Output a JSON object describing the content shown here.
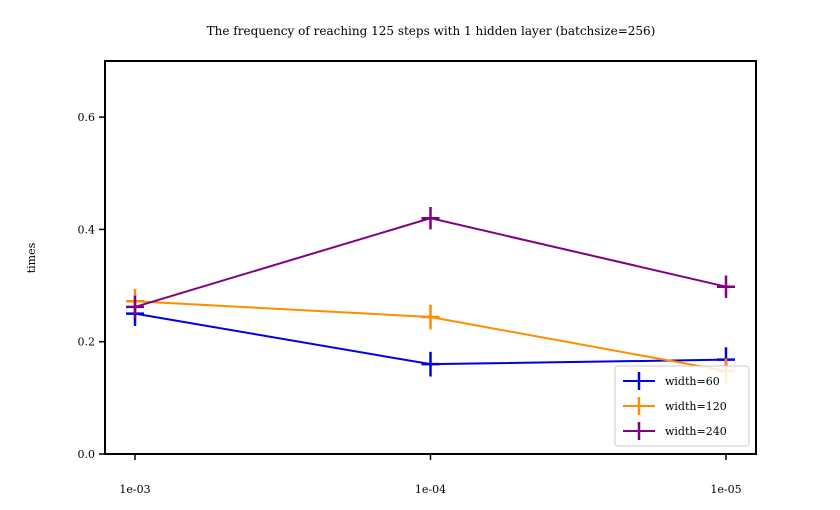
{
  "chart_data": {
    "type": "line",
    "title": "The frequency of reaching 125 steps with 1 hidden layer (batchsize=256)",
    "xlabel": "",
    "ylabel": "times",
    "categories": [
      "1e-03",
      "1e-04",
      "1e-05"
    ],
    "ylim": [
      0.0,
      0.7
    ],
    "yticks": [
      0.0,
      0.2,
      0.4,
      0.6
    ],
    "ytick_labels": [
      "0.0",
      "0.2",
      "0.4",
      "0.6"
    ],
    "grid": false,
    "legend_position": "bottom-right",
    "series": [
      {
        "name": "width=60",
        "color": "#0000e6",
        "values": [
          0.25,
          0.16,
          0.168
        ],
        "errors": [
          0.022,
          0.022,
          0.022
        ]
      },
      {
        "name": "width=120",
        "color": "#ff8c00",
        "values": [
          0.272,
          0.244,
          0.148
        ],
        "errors": [
          0.022,
          0.022,
          0.022
        ]
      },
      {
        "name": "width=240",
        "color": "#800080",
        "values": [
          0.262,
          0.42,
          0.298
        ],
        "errors": [
          0.02,
          0.02,
          0.02
        ]
      }
    ]
  }
}
